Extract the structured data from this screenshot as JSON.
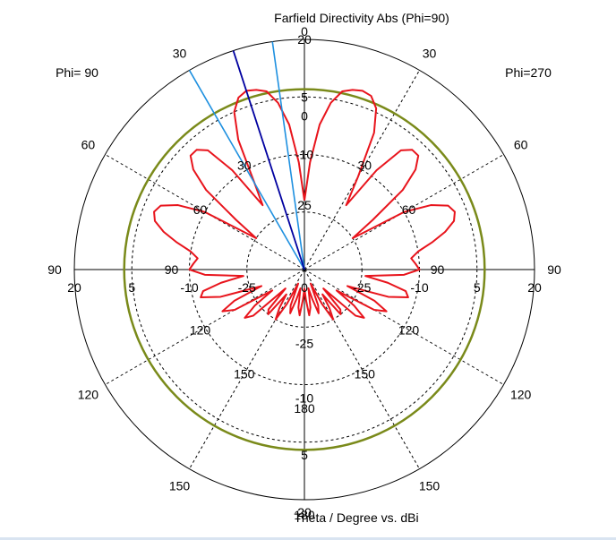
{
  "chart_data": {
    "type": "polar",
    "title": "Farfield Directivity Abs (Phi=90)",
    "xlabel": "Theta / Degree vs. dBi",
    "left_label": "Phi= 90",
    "right_label": "Phi=270",
    "r_range_dbi": [
      -40,
      20
    ],
    "radial_ticks": [
      "20",
      "5",
      "-10",
      "-25"
    ],
    "inner_radial_ticks": [
      "5",
      "0",
      "-10",
      "25",
      "-25",
      "-10"
    ],
    "outer_angle_ticks": [
      "0",
      "30",
      "60",
      "90",
      "120",
      "150",
      "180"
    ],
    "inner_angle_ticks": [
      "30",
      "60",
      "90",
      "120",
      "150",
      "180"
    ],
    "grid": "dashed circles and spokes",
    "reference_circle_dbi": 7,
    "main_lobe": {
      "theta_deg": 18,
      "directivity_dbi": 20
    },
    "beam_width_lines_deg": [
      8,
      30
    ],
    "series": [
      {
        "color": "#e8141c",
        "theta_deg": [
          0,
          3,
          6,
          9,
          12,
          15,
          18,
          21,
          24,
          27,
          30,
          33,
          36,
          39,
          42,
          45,
          48,
          51,
          54,
          57,
          60,
          63,
          66,
          69,
          72,
          75,
          78,
          81,
          84,
          87,
          90,
          93,
          96,
          99,
          102,
          105,
          108,
          111,
          114,
          117,
          120,
          123,
          126,
          129,
          132,
          135,
          138,
          141,
          144,
          147,
          150,
          153,
          156,
          159,
          162,
          165,
          168,
          171,
          174,
          177,
          180
        ],
        "right_side_dbi": [
          -22,
          -12,
          -2,
          4,
          7.5,
          8.5,
          9,
          8.5,
          6,
          0,
          -12,
          -20,
          -8,
          0,
          2,
          2,
          -1,
          -7,
          -18,
          -25,
          -10,
          -3,
          1,
          2,
          1,
          -2,
          -6,
          -10,
          -12,
          -11,
          -10,
          -14,
          -24,
          -18,
          -13,
          -12,
          -17,
          -28,
          -20,
          -16,
          -19,
          -30,
          -24,
          -20,
          -22,
          -33,
          -26,
          -25,
          -32,
          -28,
          -25,
          -30,
          -36,
          -30,
          -28,
          -32,
          -35,
          -30,
          -28,
          -32,
          -35
        ],
        "left_side_dbi": [
          -22,
          -12,
          -2,
          4,
          7.5,
          8.5,
          9,
          8,
          5,
          -2,
          -14,
          -20,
          -8,
          0,
          2,
          2,
          -1,
          -7,
          -18,
          -25,
          -10,
          -3,
          1,
          2,
          1,
          -2,
          -6,
          -10,
          -12,
          -11,
          -10,
          -14,
          -24,
          -18,
          -13,
          -12,
          -17,
          -28,
          -20,
          -16,
          -19,
          -30,
          -24,
          -20,
          -22,
          -33,
          -26,
          -25,
          -32,
          -28,
          -25,
          -30,
          -36,
          -30,
          -28,
          -32,
          -35,
          -30,
          -28,
          -32,
          -35
        ]
      }
    ],
    "colors": {
      "pattern": "#e8141c",
      "reference_circle": "#7a8a1a",
      "main_lobe_line": "#0000a0",
      "beamwidth_line": "#1e90e0",
      "grid": "#000000"
    }
  }
}
